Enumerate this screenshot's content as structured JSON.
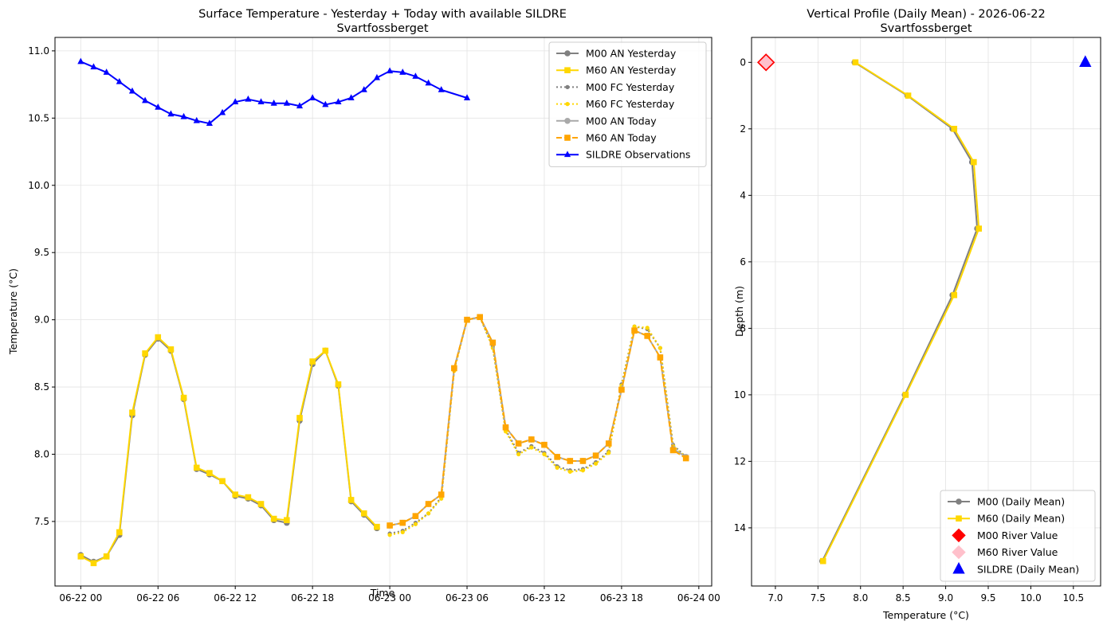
{
  "chart_data": [
    {
      "type": "line",
      "title": "Surface Temperature - Yesterday + Today with available SILDRE",
      "subtitle": "Svartfossberget",
      "xlabel": "Time",
      "ylabel": "Temperature (°C)",
      "xlim": [
        "2026-06-21 22:00",
        "2026-06-24 01:00"
      ],
      "ylim": [
        7.02,
        11.1
      ],
      "x_ticks": [
        "06-22 00",
        "06-22 06",
        "06-22 12",
        "06-22 18",
        "06-23 00",
        "06-23 06",
        "06-23 12",
        "06-23 18",
        "06-24 00"
      ],
      "x_tick_values": [
        "2026-06-22 00:00",
        "2026-06-22 06:00",
        "2026-06-22 12:00",
        "2026-06-22 18:00",
        "2026-06-23 00:00",
        "2026-06-23 06:00",
        "2026-06-23 12:00",
        "2026-06-23 18:00",
        "2026-06-24 00:00"
      ],
      "y_ticks": [
        "7.5",
        "8.0",
        "8.5",
        "9.0",
        "9.5",
        "10.0",
        "10.5",
        "11.0"
      ],
      "y_tick_values": [
        7.5,
        8.0,
        8.5,
        9.0,
        9.5,
        10.0,
        10.5,
        11.0
      ],
      "grid": true,
      "legend_position": "top-right",
      "series": [
        {
          "name": "M00 AN Yesterday",
          "color": "#808080",
          "style": "solid",
          "marker": "circle",
          "x": [
            "2026-06-22 00:00",
            "2026-06-22 01:00",
            "2026-06-22 02:00",
            "2026-06-22 03:00",
            "2026-06-22 04:00",
            "2026-06-22 05:00",
            "2026-06-22 06:00",
            "2026-06-22 07:00",
            "2026-06-22 08:00",
            "2026-06-22 09:00",
            "2026-06-22 10:00",
            "2026-06-22 11:00",
            "2026-06-22 12:00",
            "2026-06-22 13:00",
            "2026-06-22 14:00",
            "2026-06-22 15:00",
            "2026-06-22 16:00",
            "2026-06-22 17:00",
            "2026-06-22 18:00",
            "2026-06-22 19:00",
            "2026-06-22 20:00",
            "2026-06-22 21:00",
            "2026-06-22 22:00",
            "2026-06-22 23:00"
          ],
          "y": [
            7.25,
            7.2,
            7.24,
            7.4,
            8.29,
            8.74,
            8.86,
            8.77,
            8.41,
            7.89,
            7.85,
            7.8,
            7.69,
            7.67,
            7.62,
            7.51,
            7.49,
            8.25,
            8.67,
            8.77,
            8.51,
            7.65,
            7.55,
            7.45
          ]
        },
        {
          "name": "M60 AN Yesterday",
          "color": "#ffd700",
          "style": "solid",
          "marker": "square",
          "x": [
            "2026-06-22 00:00",
            "2026-06-22 01:00",
            "2026-06-22 02:00",
            "2026-06-22 03:00",
            "2026-06-22 04:00",
            "2026-06-22 05:00",
            "2026-06-22 06:00",
            "2026-06-22 07:00",
            "2026-06-22 08:00",
            "2026-06-22 09:00",
            "2026-06-22 10:00",
            "2026-06-22 11:00",
            "2026-06-22 12:00",
            "2026-06-22 13:00",
            "2026-06-22 14:00",
            "2026-06-22 15:00",
            "2026-06-22 16:00",
            "2026-06-22 17:00",
            "2026-06-22 18:00",
            "2026-06-22 19:00",
            "2026-06-22 20:00",
            "2026-06-22 21:00",
            "2026-06-22 22:00",
            "2026-06-22 23:00"
          ],
          "y": [
            7.24,
            7.19,
            7.24,
            7.42,
            8.31,
            8.75,
            8.87,
            8.78,
            8.42,
            7.9,
            7.86,
            7.8,
            7.7,
            7.68,
            7.63,
            7.52,
            7.51,
            8.27,
            8.69,
            8.77,
            8.52,
            7.66,
            7.56,
            7.46
          ]
        },
        {
          "name": "M00 FC Yesterday",
          "color": "#808080",
          "style": "dotted",
          "marker": "circle",
          "x": [
            "2026-06-23 00:00",
            "2026-06-23 01:00",
            "2026-06-23 02:00",
            "2026-06-23 03:00",
            "2026-06-23 04:00",
            "2026-06-23 05:00",
            "2026-06-23 06:00",
            "2026-06-23 07:00",
            "2026-06-23 08:00",
            "2026-06-23 09:00",
            "2026-06-23 10:00",
            "2026-06-23 11:00",
            "2026-06-23 12:00",
            "2026-06-23 13:00",
            "2026-06-23 14:00",
            "2026-06-23 15:00",
            "2026-06-23 16:00",
            "2026-06-23 17:00",
            "2026-06-23 18:00",
            "2026-06-23 19:00",
            "2026-06-23 20:00",
            "2026-06-23 21:00",
            "2026-06-23 22:00",
            "2026-06-23 23:00"
          ],
          "y": [
            7.41,
            7.43,
            7.49,
            7.56,
            7.68,
            8.63,
            9.0,
            9.02,
            8.8,
            8.18,
            8.01,
            8.06,
            8.01,
            7.91,
            7.88,
            7.89,
            7.94,
            8.02,
            8.52,
            8.95,
            8.93,
            8.79,
            8.07,
            7.98
          ]
        },
        {
          "name": "M60 FC Yesterday",
          "color": "#ffd700",
          "style": "dotted",
          "marker": "circle",
          "x": [
            "2026-06-23 00:00",
            "2026-06-23 01:00",
            "2026-06-23 02:00",
            "2026-06-23 03:00",
            "2026-06-23 04:00",
            "2026-06-23 05:00",
            "2026-06-23 06:00",
            "2026-06-23 07:00",
            "2026-06-23 08:00",
            "2026-06-23 09:00",
            "2026-06-23 10:00",
            "2026-06-23 11:00",
            "2026-06-23 12:00",
            "2026-06-23 13:00",
            "2026-06-23 14:00",
            "2026-06-23 15:00",
            "2026-06-23 16:00",
            "2026-06-23 17:00",
            "2026-06-23 18:00",
            "2026-06-23 19:00",
            "2026-06-23 20:00",
            "2026-06-23 21:00",
            "2026-06-23 22:00",
            "2026-06-23 23:00"
          ],
          "y": [
            7.4,
            7.42,
            7.48,
            7.56,
            7.67,
            8.62,
            9.0,
            9.02,
            8.79,
            8.17,
            8.0,
            8.05,
            8.0,
            7.9,
            7.87,
            7.88,
            7.93,
            8.01,
            8.51,
            8.95,
            8.94,
            8.79,
            8.06,
            7.98
          ]
        },
        {
          "name": "M00 AN Today",
          "color": "#a9a9a9",
          "style": "solid",
          "marker": "circle",
          "x": [
            "2026-06-23 00:00",
            "2026-06-23 01:00",
            "2026-06-23 02:00",
            "2026-06-23 03:00",
            "2026-06-23 04:00",
            "2026-06-23 05:00",
            "2026-06-23 06:00",
            "2026-06-23 07:00",
            "2026-06-23 08:00",
            "2026-06-23 09:00",
            "2026-06-23 10:00",
            "2026-06-23 11:00",
            "2026-06-23 12:00",
            "2026-06-23 13:00",
            "2026-06-23 14:00",
            "2026-06-23 15:00",
            "2026-06-23 16:00",
            "2026-06-23 17:00",
            "2026-06-23 18:00",
            "2026-06-23 19:00",
            "2026-06-23 20:00",
            "2026-06-23 21:00",
            "2026-06-23 22:00",
            "2026-06-23 23:00"
          ],
          "y": [
            7.47,
            7.49,
            7.54,
            7.63,
            7.7,
            8.64,
            9.0,
            9.02,
            8.83,
            8.2,
            8.08,
            8.11,
            8.07,
            7.98,
            7.95,
            7.95,
            7.99,
            8.08,
            8.48,
            8.92,
            8.88,
            8.72,
            8.04,
            7.98
          ]
        },
        {
          "name": "M60 AN Today",
          "color": "#ffa500",
          "style": "dashed",
          "marker": "square",
          "x": [
            "2026-06-23 00:00",
            "2026-06-23 01:00",
            "2026-06-23 02:00",
            "2026-06-23 03:00",
            "2026-06-23 04:00",
            "2026-06-23 05:00",
            "2026-06-23 06:00",
            "2026-06-23 07:00",
            "2026-06-23 08:00",
            "2026-06-23 09:00",
            "2026-06-23 10:00",
            "2026-06-23 11:00",
            "2026-06-23 12:00",
            "2026-06-23 13:00",
            "2026-06-23 14:00",
            "2026-06-23 15:00",
            "2026-06-23 16:00",
            "2026-06-23 17:00",
            "2026-06-23 18:00",
            "2026-06-23 19:00",
            "2026-06-23 20:00",
            "2026-06-23 21:00",
            "2026-06-23 22:00",
            "2026-06-23 23:00"
          ],
          "y": [
            7.47,
            7.49,
            7.54,
            7.63,
            7.7,
            8.64,
            9.0,
            9.02,
            8.83,
            8.2,
            8.08,
            8.11,
            8.07,
            7.98,
            7.95,
            7.95,
            7.99,
            8.08,
            8.48,
            8.92,
            8.88,
            8.72,
            8.03,
            7.97
          ]
        },
        {
          "name": "SILDRE Observations",
          "color": "#0000ff",
          "style": "solid",
          "marker": "triangle",
          "x": [
            "2026-06-22 00:00",
            "2026-06-22 01:00",
            "2026-06-22 02:00",
            "2026-06-22 03:00",
            "2026-06-22 04:00",
            "2026-06-22 05:00",
            "2026-06-22 06:00",
            "2026-06-22 07:00",
            "2026-06-22 08:00",
            "2026-06-22 09:00",
            "2026-06-22 10:00",
            "2026-06-22 11:00",
            "2026-06-22 12:00",
            "2026-06-22 13:00",
            "2026-06-22 14:00",
            "2026-06-22 15:00",
            "2026-06-22 16:00",
            "2026-06-22 17:00",
            "2026-06-22 18:00",
            "2026-06-22 19:00",
            "2026-06-22 20:00",
            "2026-06-22 21:00",
            "2026-06-22 22:00",
            "2026-06-22 23:00",
            "2026-06-23 00:00",
            "2026-06-23 01:00",
            "2026-06-23 02:00",
            "2026-06-23 03:00",
            "2026-06-23 04:00",
            "2026-06-23 06:00"
          ],
          "y": [
            10.92,
            10.88,
            10.84,
            10.77,
            10.7,
            10.63,
            10.58,
            10.53,
            10.51,
            10.48,
            10.46,
            10.54,
            10.62,
            10.64,
            10.62,
            10.61,
            10.61,
            10.59,
            10.65,
            10.6,
            10.62,
            10.65,
            10.71,
            10.8,
            10.85,
            10.84,
            10.81,
            10.76,
            10.71,
            10.65
          ]
        }
      ]
    },
    {
      "type": "line",
      "title": "Vertical Profile (Daily Mean) - 2026-06-22",
      "subtitle": "Svartfossberget",
      "xlabel": "Temperature (°C)",
      "ylabel": "Depth (m)",
      "xlim": [
        6.72,
        10.82
      ],
      "ylim": [
        15.75,
        -0.75
      ],
      "y_inverted": true,
      "x_ticks": [
        "7.0",
        "7.5",
        "8.0",
        "8.5",
        "9.0",
        "9.5",
        "10.0",
        "10.5"
      ],
      "x_tick_values": [
        7.0,
        7.5,
        8.0,
        8.5,
        9.0,
        9.5,
        10.0,
        10.5
      ],
      "y_ticks": [
        "0",
        "2",
        "4",
        "6",
        "8",
        "10",
        "12",
        "14"
      ],
      "y_tick_values": [
        0,
        2,
        4,
        6,
        8,
        10,
        12,
        14
      ],
      "grid": true,
      "legend_position": "bottom-right",
      "series": [
        {
          "name": "M00 (Daily Mean)",
          "color": "#808080",
          "style": "solid",
          "marker": "circle",
          "x": [
            7.93,
            8.55,
            9.08,
            9.31,
            9.37,
            9.08,
            8.52,
            7.55
          ],
          "y": [
            0,
            1,
            2,
            3,
            5,
            7,
            10,
            15
          ]
        },
        {
          "name": "M60 (Daily Mean)",
          "color": "#ffd700",
          "style": "solid",
          "marker": "square",
          "x": [
            7.94,
            8.56,
            9.1,
            9.33,
            9.39,
            9.1,
            8.53,
            7.56
          ],
          "y": [
            0,
            1,
            2,
            3,
            5,
            7,
            10,
            15
          ]
        },
        {
          "name": "M00 River Value",
          "color": "#ff0000",
          "style": "none",
          "marker": "diamond",
          "x": [
            6.89
          ],
          "y": [
            0
          ]
        },
        {
          "name": "M60 River Value",
          "color": "#ffc0cb",
          "style": "none",
          "marker": "diamond",
          "x": [
            6.89
          ],
          "y": [
            0
          ]
        },
        {
          "name": "SILDRE (Daily Mean)",
          "color": "#0000ff",
          "style": "none",
          "marker": "triangle",
          "x": [
            10.64
          ],
          "y": [
            0
          ]
        }
      ]
    }
  ]
}
